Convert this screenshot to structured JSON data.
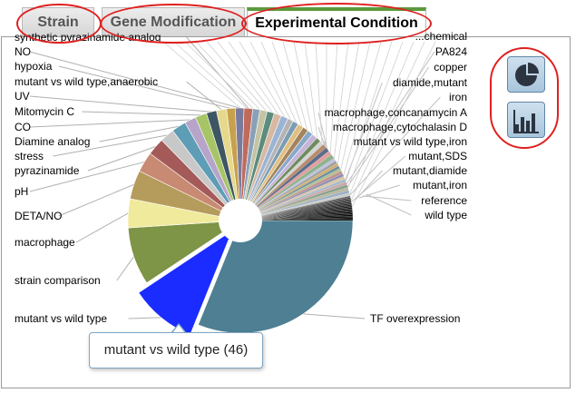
{
  "tabs": {
    "strain": "Strain",
    "gene_modification": "Gene Modification",
    "experimental_condition": "Experimental Condition"
  },
  "icons": {
    "pie": "pie-chart-icon",
    "bar": "bar-chart-icon"
  },
  "colors": {
    "highlight_ring": "#e02020",
    "active_tab_bar": "#5a9a3c",
    "selected_slice": "#1a2cff"
  },
  "tooltip": "mutant vs wild type (46)",
  "chart_data": {
    "type": "pie",
    "selected": "mutant vs wild type",
    "slices": [
      {
        "label": "TF overexpression",
        "value": 150,
        "color": "#4e7f92"
      },
      {
        "label": "mutant vs wild type",
        "value": 46,
        "color": "#1a2cff"
      },
      {
        "label": "strain comparison",
        "value": 40,
        "color": "#7e9446"
      },
      {
        "label": "macrophage",
        "value": 20,
        "color": "#f0ea9c"
      },
      {
        "label": "DETA/NO",
        "value": 20,
        "color": "#b59c5c"
      },
      {
        "label": "pH",
        "value": 14,
        "color": "#c88a72"
      },
      {
        "label": "pyrazinamide",
        "value": 12,
        "color": "#a35a58"
      },
      {
        "label": "stress",
        "value": 10,
        "color": "#c8c8c8"
      },
      {
        "label": "Diamine analog",
        "value": 10,
        "color": "#5e9db5"
      },
      {
        "label": "CO",
        "value": 8,
        "color": "#b6a4c9"
      },
      {
        "label": "Mitomycin C",
        "value": 8,
        "color": "#a7c566"
      },
      {
        "label": "UV",
        "value": 7,
        "color": "#3e5564"
      },
      {
        "label": "mutant vs wild type,anaerobic",
        "value": 7,
        "color": "#e6d98c"
      },
      {
        "label": "hypoxia",
        "value": 6,
        "color": "#c8a04c"
      },
      {
        "label": "NO",
        "value": 6,
        "color": "#7a7a9c"
      },
      {
        "label": "synthetic pyrazinamide analog",
        "value": 6,
        "color": "#c06a5c"
      },
      {
        "label": "",
        "value": 5,
        "color": "#8aa0b8"
      },
      {
        "label": "",
        "value": 5,
        "color": "#c4c4a4"
      },
      {
        "label": "",
        "value": 5,
        "color": "#5c8c7c"
      },
      {
        "label": "",
        "value": 5,
        "color": "#d8b8a0"
      },
      {
        "label": "",
        "value": 5,
        "color": "#9cb4d4"
      },
      {
        "label": "",
        "value": 4,
        "color": "#b4b4b4"
      },
      {
        "label": "",
        "value": 4,
        "color": "#7c9cb4"
      },
      {
        "label": "",
        "value": 4,
        "color": "#e0c080"
      },
      {
        "label": "",
        "value": 4,
        "color": "#a4845c"
      },
      {
        "label": "",
        "value": 4,
        "color": "#88a8c8"
      },
      {
        "label": "",
        "value": 4,
        "color": "#c8b4d8"
      },
      {
        "label": "",
        "value": 3,
        "color": "#6c8c5c"
      },
      {
        "label": "",
        "value": 3,
        "color": "#d4d4d4"
      },
      {
        "label": "",
        "value": 3,
        "color": "#b88c6c"
      },
      {
        "label": "",
        "value": 3,
        "color": "#5c6c8c"
      },
      {
        "label": "",
        "value": 3,
        "color": "#e0a0a0"
      },
      {
        "label": "",
        "value": 3,
        "color": "#8cb48c"
      },
      {
        "label": "",
        "value": 2,
        "color": "#c0c0e0"
      },
      {
        "label": "",
        "value": 2,
        "color": "#a0a0a0"
      },
      {
        "label": "",
        "value": 2,
        "color": "#d0b070"
      },
      {
        "label": "",
        "value": 2,
        "color": "#7090a0"
      },
      {
        "label": "",
        "value": 2,
        "color": "#b0c090"
      },
      {
        "label": "",
        "value": 2,
        "color": "#c09090"
      },
      {
        "label": "",
        "value": 2,
        "color": "#9090b0"
      },
      {
        "label": "",
        "value": 2,
        "color": "#d8c8a8"
      },
      {
        "label": "",
        "value": 2,
        "color": "#a8b8c8"
      },
      {
        "label": "",
        "value": 2,
        "color": "#c8a8a8"
      },
      {
        "label": "",
        "value": 2,
        "color": "#88a088"
      },
      {
        "label": "",
        "value": 2,
        "color": "#b8b8a0"
      },
      {
        "label": "",
        "value": 2,
        "color": "#9cb0c4"
      },
      {
        "label": "",
        "value": 2,
        "color": "#cccccc"
      },
      {
        "label": "",
        "value": 1,
        "color": "#5c5c5c"
      },
      {
        "label": "",
        "value": 1,
        "color": "#444444"
      },
      {
        "label": "",
        "value": 1,
        "color": "#3c3c3c"
      },
      {
        "label": "",
        "value": 1,
        "color": "#333333"
      },
      {
        "label": "",
        "value": 1,
        "color": "#2c2c2c"
      },
      {
        "label": "",
        "value": 1,
        "color": "#262626"
      },
      {
        "label": "",
        "value": 1,
        "color": "#202020"
      },
      {
        "label": "",
        "value": 1,
        "color": "#1a1a1a"
      },
      {
        "label": "",
        "value": 1,
        "color": "#161616"
      },
      {
        "label": "",
        "value": 1,
        "color": "#121212"
      },
      {
        "label": "",
        "value": 1,
        "color": "#0e0e0e"
      },
      {
        "label": "",
        "value": 1,
        "color": "#0a0a0a"
      },
      {
        "label": "",
        "value": 1,
        "color": "#080808"
      },
      {
        "label": "",
        "value": 1,
        "color": "#060606"
      },
      {
        "label": "",
        "value": 1,
        "color": "#040404"
      },
      {
        "label": "",
        "value": 1,
        "color": "#020202"
      },
      {
        "label": "",
        "value": 1,
        "color": "#000000"
      }
    ],
    "right_labels": [
      "PA824",
      "copper",
      "diamide,mutant",
      "iron",
      "macrophage,concanamycin A",
      "macrophage,cytochalasin D",
      "mutant vs wild type,iron",
      "mutant,SDS",
      "mutant,diamide",
      "mutant,iron",
      "reference",
      "wild type"
    ],
    "top_right_partial_label": "...chemical"
  }
}
